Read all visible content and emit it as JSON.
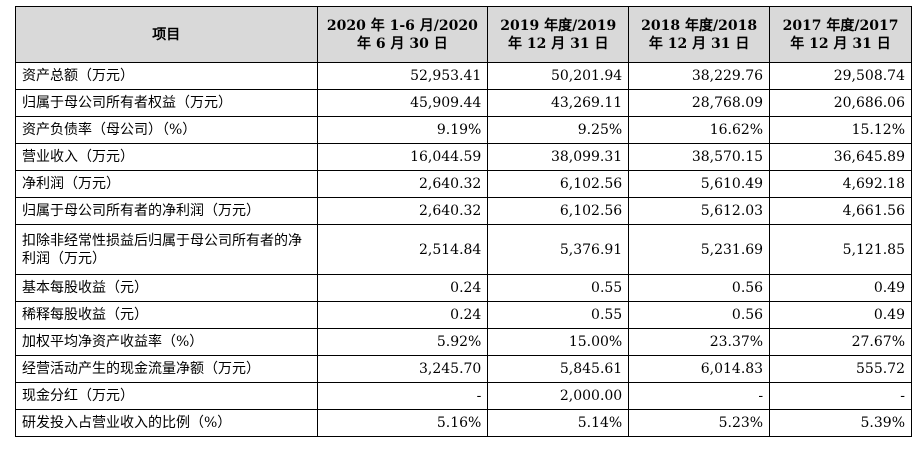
{
  "table": {
    "headers": [
      {
        "line1": "项目",
        "line2": ""
      },
      {
        "line1": "2020 年 1-6 月/2020",
        "line2": "年 6 月 30 日"
      },
      {
        "line1": "2019 年度/2019",
        "line2": "年 12 月 31 日"
      },
      {
        "line1": "2018 年度/2018",
        "line2": "年 12 月 31 日"
      },
      {
        "line1": "2017 年度/2017",
        "line2": "年 12 月 31 日"
      }
    ],
    "rows": [
      {
        "label": "资产总额（万元）",
        "values": [
          "52,953.41",
          "50,201.94",
          "38,229.76",
          "29,508.74"
        ]
      },
      {
        "label": "归属于母公司所有者权益（万元）",
        "values": [
          "45,909.44",
          "43,269.11",
          "28,768.09",
          "20,686.06"
        ]
      },
      {
        "label": "资产负债率（母公司）（%）",
        "values": [
          "9.19%",
          "9.25%",
          "16.62%",
          "15.12%"
        ]
      },
      {
        "label": "营业收入（万元）",
        "values": [
          "16,044.59",
          "38,099.31",
          "38,570.15",
          "36,645.89"
        ]
      },
      {
        "label": "净利润（万元）",
        "values": [
          "2,640.32",
          "6,102.56",
          "5,610.49",
          "4,692.18"
        ]
      },
      {
        "label": "归属于母公司所有者的净利润（万元）",
        "values": [
          "2,640.32",
          "6,102.56",
          "5,612.03",
          "4,661.56"
        ]
      },
      {
        "label": "扣除非经常性损益后归属于母公司所有者的净利润（万元）",
        "values": [
          "2,514.84",
          "5,376.91",
          "5,231.69",
          "5,121.85"
        ]
      },
      {
        "label": "基本每股收益（元）",
        "values": [
          "0.24",
          "0.55",
          "0.56",
          "0.49"
        ]
      },
      {
        "label": "稀释每股收益（元）",
        "values": [
          "0.24",
          "0.55",
          "0.56",
          "0.49"
        ]
      },
      {
        "label": "加权平均净资产收益率（%）",
        "values": [
          "5.92%",
          "15.00%",
          "23.37%",
          "27.67%"
        ]
      },
      {
        "label": "经营活动产生的现金流量净额（万元）",
        "values": [
          "3,245.70",
          "5,845.61",
          "6,014.83",
          "555.72"
        ]
      },
      {
        "label": "现金分红（万元）",
        "values": [
          "-",
          "2,000.00",
          "-",
          "-"
        ]
      },
      {
        "label": "研发投入占营业收入的比例（%）",
        "values": [
          "5.16%",
          "5.14%",
          "5.23%",
          "5.39%"
        ]
      }
    ]
  }
}
